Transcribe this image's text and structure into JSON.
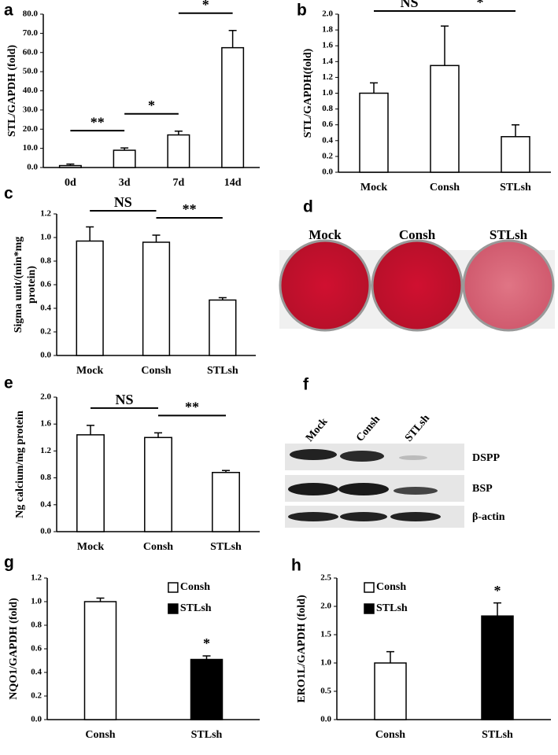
{
  "chart_data": [
    {
      "type": "bar",
      "panel_label": "a",
      "ylabel": [
        "STL/GAPDH (fold)"
      ],
      "categories": [
        "0d",
        "3d",
        "7d",
        "14d"
      ],
      "values": [
        1.0,
        9.0,
        17.0,
        62.5
      ],
      "errors": [
        0.8,
        1.2,
        2.0,
        9.0
      ],
      "color": "#ffffff",
      "ylim": [
        0,
        80
      ],
      "yticks": [
        {
          "value": 0,
          "label": "0.0"
        },
        {
          "value": 10,
          "label": "10.0"
        },
        {
          "value": 20,
          "label": "20.0"
        },
        {
          "value": 30,
          "label": "30.0"
        },
        {
          "value": 40,
          "label": "40.0"
        },
        {
          "value": 50,
          "label": "50.0"
        },
        {
          "value": 60,
          "label": "60.0"
        },
        {
          "value": 70,
          "label": "70.0"
        },
        {
          "value": 80,
          "label": "80.0"
        }
      ],
      "annotations": [
        {
          "text": "**",
          "between": [
            "0d",
            "3d"
          ]
        },
        {
          "text": "*",
          "between": [
            "3d",
            "7d"
          ]
        },
        {
          "text": "*",
          "between": [
            "7d",
            "14d"
          ]
        }
      ]
    },
    {
      "type": "bar",
      "panel_label": "b",
      "ylabel": [
        "STL/GAPDH(fold)"
      ],
      "categories": [
        "Mock",
        "Consh",
        "STLsh"
      ],
      "values": [
        1.0,
        1.35,
        0.45
      ],
      "errors": [
        0.13,
        0.5,
        0.15
      ],
      "color": "#ffffff",
      "ylim": [
        0,
        2
      ],
      "yticks": [
        {
          "value": 0,
          "label": "0.0"
        },
        {
          "value": 0.2,
          "label": "0.2"
        },
        {
          "value": 0.4,
          "label": "0.4"
        },
        {
          "value": 0.6,
          "label": "0.6"
        },
        {
          "value": 0.8,
          "label": "0.8"
        },
        {
          "value": 1,
          "label": "1.0"
        },
        {
          "value": 1.2,
          "label": "1.2"
        },
        {
          "value": 1.4,
          "label": "1.4"
        },
        {
          "value": 1.6,
          "label": "1.6"
        },
        {
          "value": 1.8,
          "label": "1.8"
        },
        {
          "value": 2,
          "label": "2.0"
        }
      ],
      "annotations": [
        {
          "text": "NS",
          "between": [
            "Mock",
            "Consh"
          ]
        },
        {
          "text": "*",
          "between": [
            "Consh",
            "STLsh"
          ]
        }
      ]
    },
    {
      "type": "bar",
      "panel_label": "c",
      "ylabel": [
        "Sigma unit/(min*mg",
        "protein)"
      ],
      "categories": [
        "Mock",
        "Consh",
        "STLsh"
      ],
      "values": [
        0.97,
        0.96,
        0.47
      ],
      "errors": [
        0.12,
        0.06,
        0.02
      ],
      "color": "#ffffff",
      "ylim": [
        0,
        1.2
      ],
      "yticks": [
        {
          "value": 0,
          "label": "0.0"
        },
        {
          "value": 0.2,
          "label": "0.2"
        },
        {
          "value": 0.4,
          "label": "0.4"
        },
        {
          "value": 0.6,
          "label": "0.6"
        },
        {
          "value": 0.8,
          "label": "0.8"
        },
        {
          "value": 1,
          "label": "1.0"
        },
        {
          "value": 1.2,
          "label": "1.2"
        }
      ],
      "annotations": [
        {
          "text": "NS",
          "between": [
            "Mock",
            "Consh"
          ]
        },
        {
          "text": "**",
          "between": [
            "Consh",
            "STLsh"
          ]
        }
      ]
    },
    {
      "type": "bar",
      "panel_label": "e",
      "ylabel": [
        "Ng calcium/mg protein"
      ],
      "categories": [
        "Mock",
        "Consh",
        "STLsh"
      ],
      "values": [
        1.44,
        1.4,
        0.88
      ],
      "errors": [
        0.14,
        0.07,
        0.03
      ],
      "color": "#ffffff",
      "ylim": [
        0,
        2
      ],
      "yticks": [
        {
          "value": 0,
          "label": "0.0"
        },
        {
          "value": 0.4,
          "label": "0.4"
        },
        {
          "value": 0.8,
          "label": "0.8"
        },
        {
          "value": 1.2,
          "label": "1.2"
        },
        {
          "value": 1.6,
          "label": "1.6"
        },
        {
          "value": 2,
          "label": "2.0"
        }
      ],
      "annotations": [
        {
          "text": "NS",
          "between": [
            "Mock",
            "Consh"
          ]
        },
        {
          "text": "**",
          "between": [
            "Consh",
            "STLsh"
          ]
        }
      ]
    },
    {
      "type": "bar",
      "panel_label": "g",
      "ylabel": [
        "NQO1/GAPDH (fold)"
      ],
      "categories": [
        "Consh",
        "STLsh"
      ],
      "series": [
        {
          "name": "Consh",
          "color": "#ffffff",
          "values": [
            1.0,
            null
          ],
          "errors": [
            0.03,
            null
          ]
        },
        {
          "name": "STLsh",
          "color": "#000000",
          "values": [
            null,
            0.51
          ],
          "errors": [
            null,
            0.03
          ]
        }
      ],
      "legend": "upper right",
      "ylim": [
        0,
        1.2
      ],
      "yticks": [
        {
          "value": 0,
          "label": "0.0"
        },
        {
          "value": 0.2,
          "label": "0.2"
        },
        {
          "value": 0.4,
          "label": "0.4"
        },
        {
          "value": 0.6,
          "label": "0.6"
        },
        {
          "value": 0.8,
          "label": "0.8"
        },
        {
          "value": 1,
          "label": "1.0"
        },
        {
          "value": 1.2,
          "label": "1.2"
        }
      ],
      "annotations": [
        {
          "text": "*",
          "above": "STLsh"
        }
      ]
    },
    {
      "type": "bar",
      "panel_label": "h",
      "ylabel": [
        "ERO1L/GAPDH (fold)"
      ],
      "categories": [
        "Consh",
        "STLsh"
      ],
      "series": [
        {
          "name": "Consh",
          "color": "#ffffff",
          "values": [
            1.0,
            null
          ],
          "errors": [
            0.2,
            null
          ]
        },
        {
          "name": "STLsh",
          "color": "#000000",
          "values": [
            null,
            1.83
          ],
          "errors": [
            null,
            0.23
          ]
        }
      ],
      "legend": "upper left",
      "ylim": [
        0,
        2.5
      ],
      "yticks": [
        {
          "value": 0,
          "label": "0.0"
        },
        {
          "value": 0.5,
          "label": "0.5"
        },
        {
          "value": 1,
          "label": "1.0"
        },
        {
          "value": 1.5,
          "label": "1.5"
        },
        {
          "value": 2,
          "label": "2.0"
        },
        {
          "value": 2.5,
          "label": "2.5"
        }
      ],
      "annotations": [
        {
          "text": "*",
          "above": "STLsh"
        }
      ]
    }
  ],
  "images": [
    {
      "panel_label": "d",
      "captions": [
        "Mock",
        "Consh",
        "STLsh"
      ]
    },
    {
      "panel_label": "f",
      "lanes": [
        "Mock",
        "Consh",
        "STLsh"
      ],
      "bands": [
        "DSPP",
        "BSP",
        "β-actin"
      ]
    }
  ]
}
